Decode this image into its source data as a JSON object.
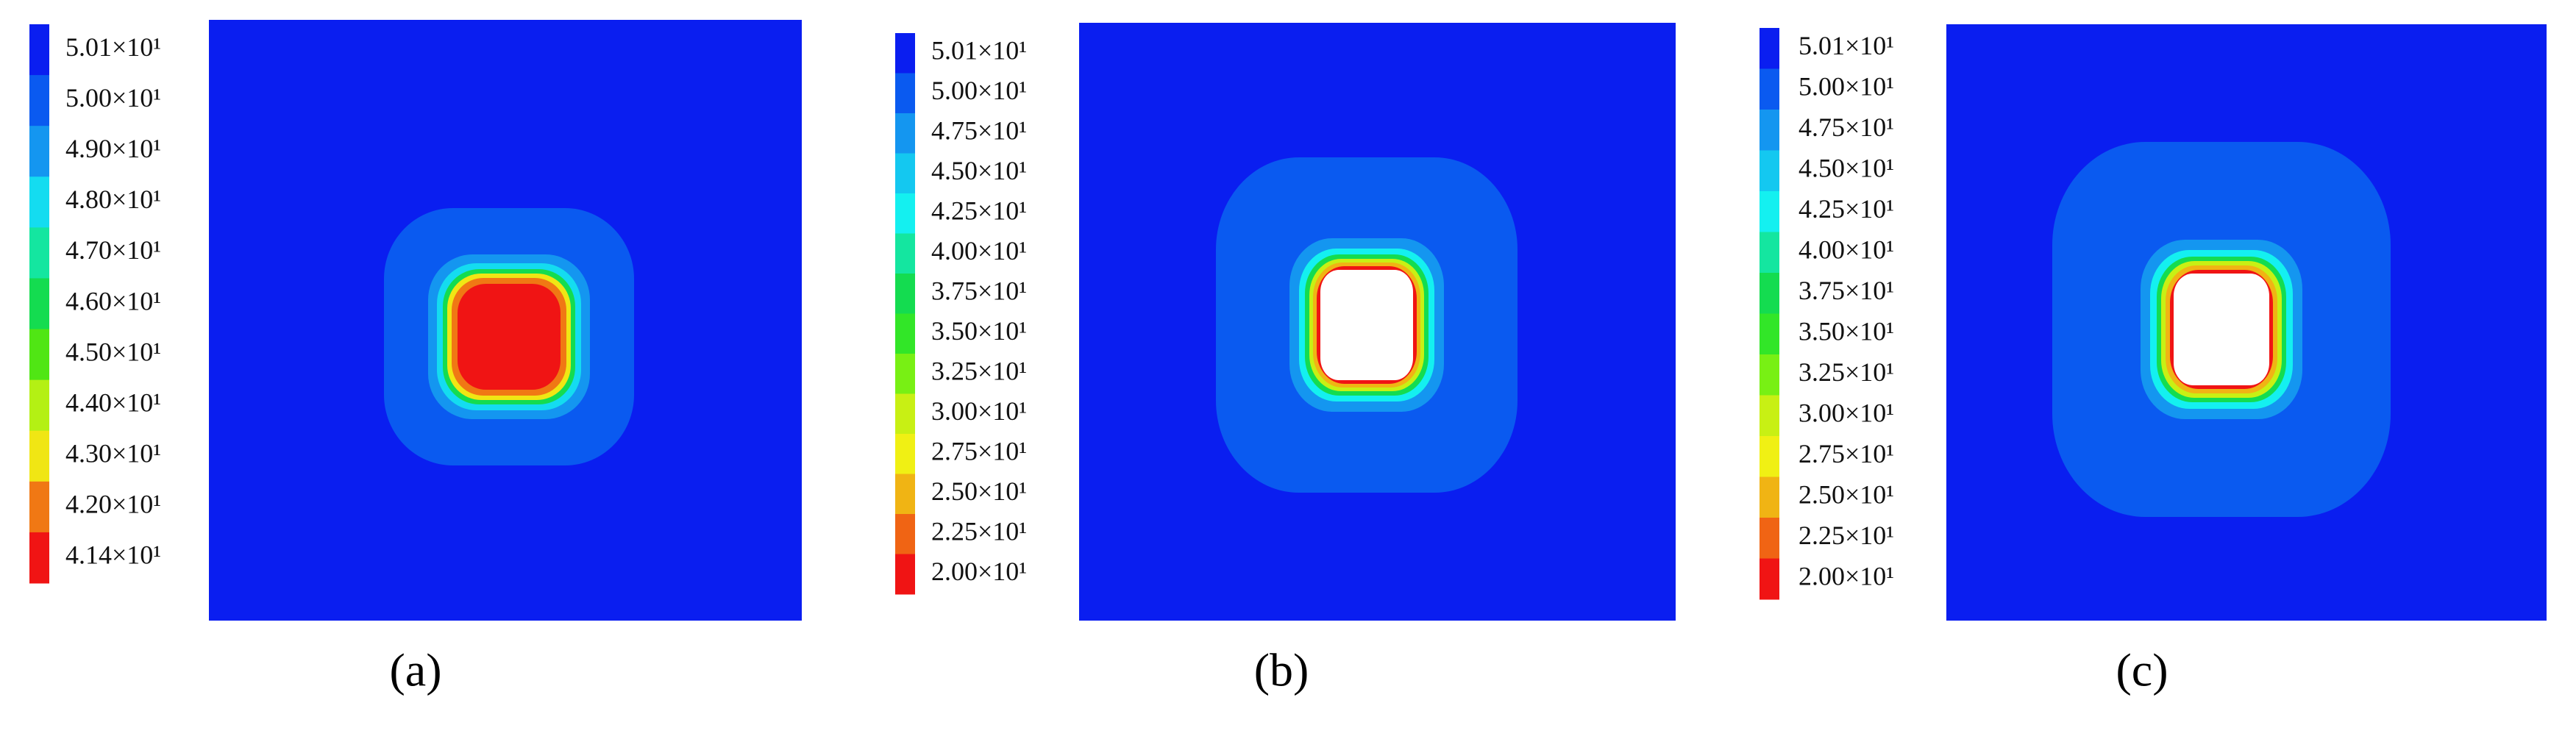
{
  "panels": [
    {
      "caption": "(a)",
      "legend_labels": [
        "5.01×10¹",
        "5.00×10¹",
        "4.90×10¹",
        "4.80×10¹",
        "4.70×10¹",
        "4.60×10¹",
        "4.50×10¹",
        "4.40×10¹",
        "4.30×10¹",
        "4.20×10¹",
        "4.14×10¹"
      ],
      "legend_colors": [
        "#0a1ef0",
        "#0a5af0",
        "#1496f0",
        "#14dcf0",
        "#14e6a0",
        "#14dc50",
        "#50e614",
        "#b4f014",
        "#f0e614",
        "#f07814",
        "#f01414"
      ]
    },
    {
      "caption": "(b)",
      "legend_labels": [
        "5.01×10¹",
        "5.00×10¹",
        "4.75×10¹",
        "4.50×10¹",
        "4.25×10¹",
        "4.00×10¹",
        "3.75×10¹",
        "3.50×10¹",
        "3.25×10¹",
        "3.00×10¹",
        "2.75×10¹",
        "2.50×10¹",
        "2.25×10¹",
        "2.00×10¹"
      ],
      "legend_colors": [
        "#0a1ef0",
        "#0a5af0",
        "#1496f0",
        "#14c8f0",
        "#14f0f0",
        "#14e6a0",
        "#14dc50",
        "#32e628",
        "#78f014",
        "#c8f014",
        "#f0f014",
        "#f0b414",
        "#f06414",
        "#f01414"
      ]
    },
    {
      "caption": "(c)",
      "legend_labels": [
        "5.01×10¹",
        "5.00×10¹",
        "4.75×10¹",
        "4.50×10¹",
        "4.25×10¹",
        "4.00×10¹",
        "3.75×10¹",
        "3.50×10¹",
        "3.25×10¹",
        "3.00×10¹",
        "2.75×10¹",
        "2.50×10¹",
        "2.25×10¹",
        "2.00×10¹"
      ],
      "legend_colors": [
        "#0a1ef0",
        "#0a5af0",
        "#1496f0",
        "#14c8f0",
        "#14f0f0",
        "#14e6a0",
        "#14dc50",
        "#32e628",
        "#78f014",
        "#c8f014",
        "#f0f014",
        "#f0b414",
        "#f06414",
        "#f01414"
      ]
    }
  ]
}
